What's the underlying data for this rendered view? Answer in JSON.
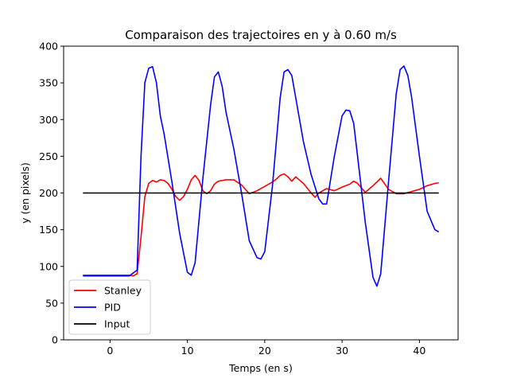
{
  "chart_data": {
    "type": "line",
    "title": "Comparaison des trajectoires en y à 0.60 m/s",
    "xlabel": "Temps (en s)",
    "ylabel": "y (en pixels)",
    "xlim": [
      -6,
      45
    ],
    "ylim": [
      0,
      400
    ],
    "xticks": [
      0,
      10,
      20,
      30,
      40
    ],
    "yticks": [
      0,
      50,
      100,
      150,
      200,
      250,
      300,
      350,
      400
    ],
    "grid": false,
    "legend_position": "lower-left",
    "series": [
      {
        "name": "Stanley",
        "color": "#ff0000",
        "x": [
          -3.5,
          2.5,
          3.0,
          3.5,
          4.0,
          4.5,
          5.0,
          5.5,
          6.0,
          6.5,
          7.0,
          7.5,
          8.0,
          8.5,
          9.0,
          9.5,
          10.0,
          10.5,
          11.0,
          11.5,
          12.0,
          12.5,
          13.0,
          13.5,
          14.0,
          15.0,
          16.0,
          17.0,
          18.0,
          19.0,
          20.0,
          21.0,
          21.5,
          22.0,
          22.5,
          23.0,
          23.5,
          24.0,
          25.0,
          26.0,
          26.5,
          27.0,
          28.0,
          29.0,
          30.0,
          31.0,
          31.5,
          32.0,
          33.0,
          34.0,
          35.0,
          36.0,
          37.0,
          38.0,
          39.0,
          40.0,
          41.0,
          42.0,
          42.5
        ],
        "y": [
          88,
          88,
          87,
          90,
          140,
          195,
          213,
          217,
          215,
          218,
          217,
          213,
          205,
          195,
          190,
          195,
          205,
          218,
          224,
          217,
          203,
          199,
          203,
          212,
          216,
          218,
          218,
          211,
          199,
          203,
          209,
          215,
          219,
          224,
          226,
          222,
          216,
          222,
          213,
          200,
          194,
          200,
          206,
          203,
          208,
          212,
          216,
          213,
          201,
          210,
          220,
          205,
          199,
          199,
          202,
          205,
          210,
          213,
          214
        ]
      },
      {
        "name": "PID",
        "color": "#0000ff",
        "x": [
          -3.5,
          2.5,
          3.5,
          4.0,
          4.5,
          5.0,
          5.5,
          6.0,
          6.5,
          7.0,
          8.0,
          9.0,
          10.0,
          10.5,
          11.0,
          12.0,
          13.0,
          13.5,
          14.0,
          14.5,
          15.0,
          16.0,
          17.0,
          18.0,
          19.0,
          19.5,
          20.0,
          21.0,
          22.0,
          22.5,
          23.0,
          23.5,
          24.0,
          25.0,
          26.0,
          27.0,
          27.5,
          28.0,
          29.0,
          30.0,
          30.5,
          31.0,
          31.5,
          32.0,
          33.0,
          34.0,
          34.5,
          35.0,
          36.0,
          37.0,
          37.5,
          38.0,
          38.5,
          39.0,
          40.0,
          41.0,
          42.0,
          42.5
        ],
        "y": [
          87,
          87,
          95,
          250,
          350,
          370,
          372,
          350,
          305,
          280,
          215,
          145,
          92,
          88,
          105,
          220,
          320,
          358,
          365,
          345,
          310,
          260,
          200,
          135,
          112,
          110,
          120,
          210,
          330,
          365,
          368,
          360,
          330,
          270,
          225,
          192,
          185,
          185,
          250,
          305,
          313,
          312,
          295,
          250,
          160,
          85,
          73,
          90,
          215,
          335,
          368,
          373,
          360,
          330,
          250,
          175,
          150,
          147
        ]
      },
      {
        "name": "Input",
        "color": "#000000",
        "x": [
          -3.5,
          42.5
        ],
        "y": [
          200,
          200
        ]
      }
    ]
  }
}
